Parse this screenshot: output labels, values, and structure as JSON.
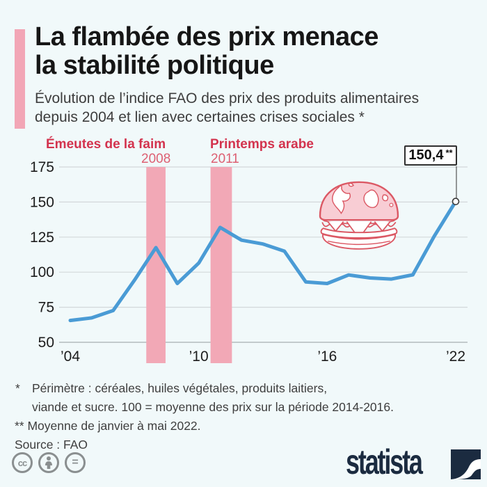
{
  "header": {
    "accent_color": "#f2a6b6",
    "title_lines": [
      "La flambée des prix menace",
      "la stabilité politique"
    ],
    "subtitle_lines": [
      "Évolution de l’indice FAO des prix des produits alimentaires",
      "depuis 2004 et lien avec certaines crises sociales *"
    ]
  },
  "chart_data": {
    "type": "line",
    "title": "Indice FAO des prix des produits alimentaires",
    "x": [
      2004,
      2005,
      2006,
      2007,
      2008,
      2009,
      2010,
      2011,
      2012,
      2013,
      2014,
      2015,
      2016,
      2017,
      2018,
      2019,
      2020,
      2021,
      2022
    ],
    "series": [
      {
        "name": "Indice FAO des prix des produits alimentaires (100 = moyenne 2014-2016)",
        "values": [
          65.6,
          67.4,
          72.6,
          94.3,
          117.5,
          91.9,
          106.5,
          131.9,
          122.8,
          120.1,
          115.0,
          93.0,
          91.9,
          98.0,
          95.9,
          95.1,
          98.1,
          125.7,
          150.4
        ]
      }
    ],
    "ylim": [
      50,
      175
    ],
    "y_ticks": [
      175,
      150,
      125,
      100,
      75,
      50
    ],
    "x_tick_years": [
      2004,
      2010,
      2016,
      2022
    ],
    "x_tick_labels": [
      "’04",
      "’10",
      "’16",
      "’22"
    ],
    "grid": "horizontal",
    "legend": "none",
    "line_color": "#4a9bd5",
    "band_color": "#f2a8b6",
    "highlight_bands": [
      {
        "label": "Émeutes de la faim",
        "year_label": "2008",
        "from": 2007.55,
        "to": 2008.45
      },
      {
        "label": "Printemps arabe",
        "year_label": "2011",
        "from": 2010.55,
        "to": 2011.55
      }
    ],
    "annotation": {
      "value_label": "150,4",
      "suffix": "**",
      "year": 2022,
      "value": 150.4
    }
  },
  "footnotes": {
    "star1_symbol": "*",
    "star1_line1": "Périmètre : céréales, huiles végétales, produits laitiers,",
    "star1_line2": "viande et sucre. 100 = moyenne des prix sur la période 2014-2016.",
    "star2": "** Moyenne de janvier à mai 2022.",
    "source": "Source : FAO"
  },
  "footer": {
    "cc_label": "cc",
    "equals_label": "=",
    "brand": "statista",
    "brand_color": "#1b2b40"
  }
}
